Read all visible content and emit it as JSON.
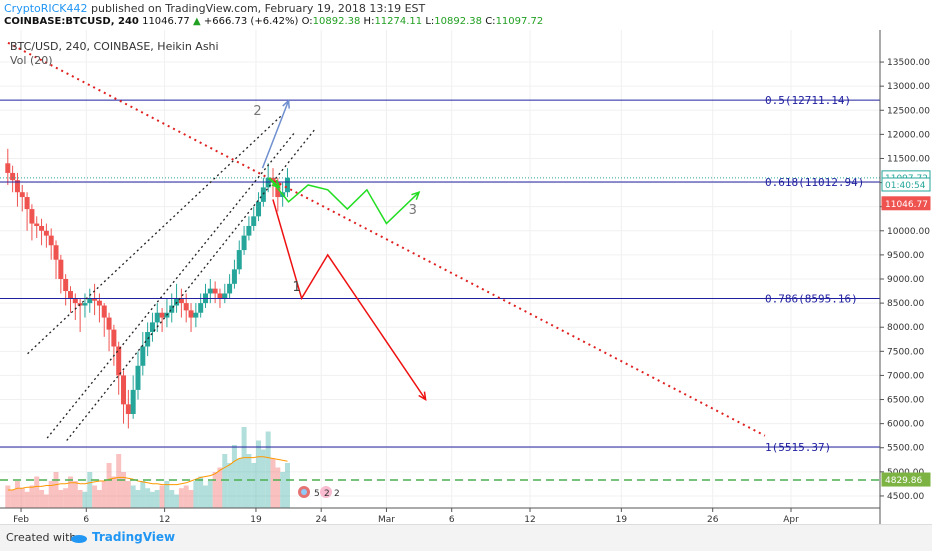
{
  "header": {
    "author": "CryptoRICK442",
    "published_text": "published on TradingView.com, February 19, 2018 13:19 EST",
    "symbol": "COINBASE:BTCUSD, 240",
    "last": "11046.77",
    "change": "+666.73 (+6.42%)",
    "o_label": "O:",
    "o_value": "10892.38",
    "h_label": "H:",
    "h_value": "11274.11",
    "l_label": "L:",
    "l_value": "10892.38",
    "c_label": "C:",
    "c_value": "11097.72"
  },
  "legend": {
    "main": "BTC/USD, 240, COINBASE, Heikin Ashi",
    "volume": "Vol (20)"
  },
  "footer": {
    "created": "Created with",
    "brand": "TradingView"
  },
  "colors": {
    "fib_line": "#2020a0",
    "trend_dotted": "#e02020",
    "up_candle": "#26a69a",
    "down_candle": "#ef5350",
    "green_path": "#22dd22",
    "red_path": "#ee1111",
    "blue_path": "#6f8fcf",
    "support_dashed": "#4caf50"
  },
  "chart_data": {
    "type": "candlestick",
    "y_axis": {
      "range": [
        4250,
        13750
      ],
      "ticks": [
        "4500.00",
        "5000.00",
        "5500.00",
        "6000.00",
        "6500.00",
        "7000.00",
        "7500.00",
        "8000.00",
        "8500.00",
        "9000.00",
        "9500.00",
        "10000.00",
        "10500.00",
        "11000.00",
        "11500.00",
        "12000.00",
        "12500.00",
        "13000.00",
        "13500.00"
      ]
    },
    "x_axis": {
      "ticks": [
        {
          "label": "Feb",
          "day": 1
        },
        {
          "label": "6",
          "day": 6
        },
        {
          "label": "12",
          "day": 12
        },
        {
          "label": "19",
          "day": 19
        },
        {
          "label": "24",
          "day": 24
        },
        {
          "label": "Mar",
          "day": 29
        },
        {
          "label": "6",
          "day": 34
        },
        {
          "label": "12",
          "day": 40
        },
        {
          "label": "19",
          "day": 47
        },
        {
          "label": "26",
          "day": 54
        },
        {
          "label": "Apr",
          "day": 60
        }
      ]
    },
    "fib_levels": [
      {
        "label": "0.5(12711.14)",
        "price": 12711.14
      },
      {
        "label": "0.618(11012.94)",
        "price": 11012.94
      },
      {
        "label": "0.786(8595.16)",
        "price": 8595.16
      },
      {
        "label": "1(5515.37)",
        "price": 5515.37
      }
    ],
    "price_tags": [
      {
        "label": "11097.72",
        "price": 11097.72,
        "style": "green"
      },
      {
        "label": "01:40:54",
        "price": 10950,
        "style": "green"
      },
      {
        "label": "11046.77",
        "price": 10560,
        "style": "red"
      },
      {
        "label": "4829.86",
        "price": 4829.86,
        "style": "greenfill"
      }
    ],
    "support_dashed_price": 4829.86,
    "trend_line": [
      {
        "day": 0,
        "price": 13900
      },
      {
        "day": 58,
        "price": 5750
      }
    ],
    "channel_lines": [
      [
        {
          "day": 1.5,
          "price": 7450
        },
        {
          "day": 21,
          "price": 12400
        }
      ],
      [
        {
          "day": 3,
          "price": 5700
        },
        {
          "day": 22,
          "price": 12050
        }
      ],
      [
        {
          "day": 4.5,
          "price": 5650
        },
        {
          "day": 23.5,
          "price": 12100
        }
      ]
    ],
    "green_path": [
      {
        "day": 20,
        "price": 11100
      },
      {
        "day": 21.5,
        "price": 10600
      },
      {
        "day": 23,
        "price": 10950
      },
      {
        "day": 24.5,
        "price": 10850
      },
      {
        "day": 26,
        "price": 10450
      },
      {
        "day": 27.5,
        "price": 10850
      },
      {
        "day": 29,
        "price": 10150
      },
      {
        "day": 31.5,
        "price": 10800
      }
    ],
    "green_path_tail": {
      "from": {
        "day": 20,
        "price": 11100
      },
      "to": {
        "day": 20.8,
        "price": 10900
      }
    },
    "red_path": [
      {
        "day": 20.3,
        "price": 10650
      },
      {
        "day": 22.5,
        "price": 8600
      },
      {
        "day": 24.5,
        "price": 9500
      },
      {
        "day": 32,
        "price": 6500
      }
    ],
    "blue_path": [
      {
        "day": 19.5,
        "price": 11300
      },
      {
        "day": 21.5,
        "price": 12700
      }
    ],
    "labels": [
      {
        "text": "1",
        "day": 21.8,
        "price": 8750,
        "color": "#444"
      },
      {
        "text": "2",
        "day": 18.8,
        "price": 12400,
        "color": "#777"
      },
      {
        "text": "3",
        "day": 30.7,
        "price": 10350,
        "color": "#777"
      }
    ],
    "candles": [
      {
        "o": 11400,
        "c": 11200,
        "h": 11700,
        "l": 10950
      },
      {
        "o": 11200,
        "c": 11050,
        "h": 11350,
        "l": 10800
      },
      {
        "o": 11050,
        "c": 10800,
        "h": 11200,
        "l": 10500
      },
      {
        "o": 10800,
        "c": 10700,
        "h": 10950,
        "l": 10400
      },
      {
        "o": 10700,
        "c": 10450,
        "h": 10800,
        "l": 10000
      },
      {
        "o": 10450,
        "c": 10150,
        "h": 10550,
        "l": 9800
      },
      {
        "o": 10150,
        "c": 10100,
        "h": 10300,
        "l": 9850
      },
      {
        "o": 10100,
        "c": 10000,
        "h": 10250,
        "l": 9700
      },
      {
        "o": 10000,
        "c": 9900,
        "h": 10150,
        "l": 9650
      },
      {
        "o": 9900,
        "c": 9700,
        "h": 10050,
        "l": 9400
      },
      {
        "o": 9700,
        "c": 9400,
        "h": 9800,
        "l": 9000
      },
      {
        "o": 9400,
        "c": 9000,
        "h": 9500,
        "l": 8700
      },
      {
        "o": 9000,
        "c": 8750,
        "h": 9100,
        "l": 8450
      },
      {
        "o": 8750,
        "c": 8600,
        "h": 8850,
        "l": 8300
      },
      {
        "o": 8600,
        "c": 8500,
        "h": 8700,
        "l": 8150
      },
      {
        "o": 8500,
        "c": 8450,
        "h": 8600,
        "l": 7900
      },
      {
        "o": 8450,
        "c": 8500,
        "h": 8700,
        "l": 8200
      },
      {
        "o": 8500,
        "c": 8600,
        "h": 8800,
        "l": 8300
      },
      {
        "o": 8600,
        "c": 8550,
        "h": 8900,
        "l": 8250
      },
      {
        "o": 8550,
        "c": 8450,
        "h": 8700,
        "l": 8100
      },
      {
        "o": 8450,
        "c": 8200,
        "h": 8500,
        "l": 7800
      },
      {
        "o": 8200,
        "c": 7950,
        "h": 8300,
        "l": 7500
      },
      {
        "o": 7950,
        "c": 7600,
        "h": 8050,
        "l": 7200
      },
      {
        "o": 7600,
        "c": 7000,
        "h": 7700,
        "l": 6600
      },
      {
        "o": 7000,
        "c": 6400,
        "h": 7100,
        "l": 6000
      },
      {
        "o": 6400,
        "c": 6200,
        "h": 6700,
        "l": 5900
      },
      {
        "o": 6200,
        "c": 6700,
        "h": 7000,
        "l": 6100
      },
      {
        "o": 6700,
        "c": 7200,
        "h": 7500,
        "l": 6500
      },
      {
        "o": 7200,
        "c": 7600,
        "h": 7900,
        "l": 7000
      },
      {
        "o": 7600,
        "c": 7900,
        "h": 8100,
        "l": 7400
      },
      {
        "o": 7900,
        "c": 8100,
        "h": 8300,
        "l": 7700
      },
      {
        "o": 8100,
        "c": 8300,
        "h": 8500,
        "l": 7900
      },
      {
        "o": 8300,
        "c": 8200,
        "h": 8400,
        "l": 7900
      },
      {
        "o": 8200,
        "c": 8300,
        "h": 8600,
        "l": 8000
      },
      {
        "o": 8300,
        "c": 8450,
        "h": 8700,
        "l": 8100
      },
      {
        "o": 8450,
        "c": 8600,
        "h": 8900,
        "l": 8300
      },
      {
        "o": 8600,
        "c": 8500,
        "h": 8800,
        "l": 8200
      },
      {
        "o": 8500,
        "c": 8350,
        "h": 8700,
        "l": 8100
      },
      {
        "o": 8350,
        "c": 8200,
        "h": 8500,
        "l": 7900
      },
      {
        "o": 8200,
        "c": 8300,
        "h": 8500,
        "l": 8000
      },
      {
        "o": 8300,
        "c": 8500,
        "h": 8700,
        "l": 8200
      },
      {
        "o": 8500,
        "c": 8700,
        "h": 8900,
        "l": 8400
      },
      {
        "o": 8700,
        "c": 8800,
        "h": 9000,
        "l": 8500
      },
      {
        "o": 8800,
        "c": 8700,
        "h": 8950,
        "l": 8500
      },
      {
        "o": 8700,
        "c": 8600,
        "h": 8800,
        "l": 8400
      },
      {
        "o": 8600,
        "c": 8700,
        "h": 8900,
        "l": 8500
      },
      {
        "o": 8700,
        "c": 8900,
        "h": 9100,
        "l": 8600
      },
      {
        "o": 8900,
        "c": 9200,
        "h": 9400,
        "l": 8800
      },
      {
        "o": 9200,
        "c": 9600,
        "h": 9800,
        "l": 9100
      },
      {
        "o": 9600,
        "c": 9900,
        "h": 10100,
        "l": 9500
      },
      {
        "o": 9900,
        "c": 10100,
        "h": 10300,
        "l": 9800
      },
      {
        "o": 10100,
        "c": 10300,
        "h": 10500,
        "l": 10000
      },
      {
        "o": 10300,
        "c": 10600,
        "h": 10800,
        "l": 10200
      },
      {
        "o": 10600,
        "c": 10900,
        "h": 11100,
        "l": 10500
      },
      {
        "o": 10900,
        "c": 11100,
        "h": 11400,
        "l": 10800
      },
      {
        "o": 11100,
        "c": 11000,
        "h": 11300,
        "l": 10700
      },
      {
        "o": 11000,
        "c": 10700,
        "h": 11100,
        "l": 10400
      },
      {
        "o": 10700,
        "c": 10800,
        "h": 11000,
        "l": 10500
      },
      {
        "o": 10800,
        "c": 11100,
        "h": 11300,
        "l": 10700
      }
    ],
    "volumes": [
      0.25,
      0.2,
      0.3,
      0.22,
      0.18,
      0.25,
      0.35,
      0.2,
      0.15,
      0.3,
      0.4,
      0.2,
      0.22,
      0.35,
      0.3,
      0.2,
      0.18,
      0.4,
      0.25,
      0.2,
      0.3,
      0.5,
      0.35,
      0.6,
      0.4,
      0.3,
      0.25,
      0.2,
      0.3,
      0.22,
      0.18,
      0.2,
      0.25,
      0.3,
      0.2,
      0.15,
      0.22,
      0.25,
      0.2,
      0.3,
      0.35,
      0.25,
      0.3,
      0.4,
      0.45,
      0.6,
      0.5,
      0.7,
      0.55,
      0.9,
      0.6,
      0.5,
      0.75,
      0.65,
      0.85,
      0.55,
      0.45,
      0.4,
      0.5
    ],
    "vol_ma": [
      0.2,
      0.2,
      0.22,
      0.22,
      0.23,
      0.23,
      0.24,
      0.24,
      0.25,
      0.25,
      0.26,
      0.27,
      0.27,
      0.28,
      0.28,
      0.27,
      0.27,
      0.28,
      0.29,
      0.3,
      0.3,
      0.32,
      0.33,
      0.34,
      0.34,
      0.33,
      0.32,
      0.3,
      0.29,
      0.28,
      0.27,
      0.27,
      0.26,
      0.26,
      0.26,
      0.26,
      0.27,
      0.28,
      0.3,
      0.32,
      0.34,
      0.35,
      0.36,
      0.38,
      0.42,
      0.45,
      0.48,
      0.52,
      0.55,
      0.56,
      0.56,
      0.56,
      0.57,
      0.57,
      0.56,
      0.55,
      0.54,
      0.53,
      0.52
    ]
  }
}
